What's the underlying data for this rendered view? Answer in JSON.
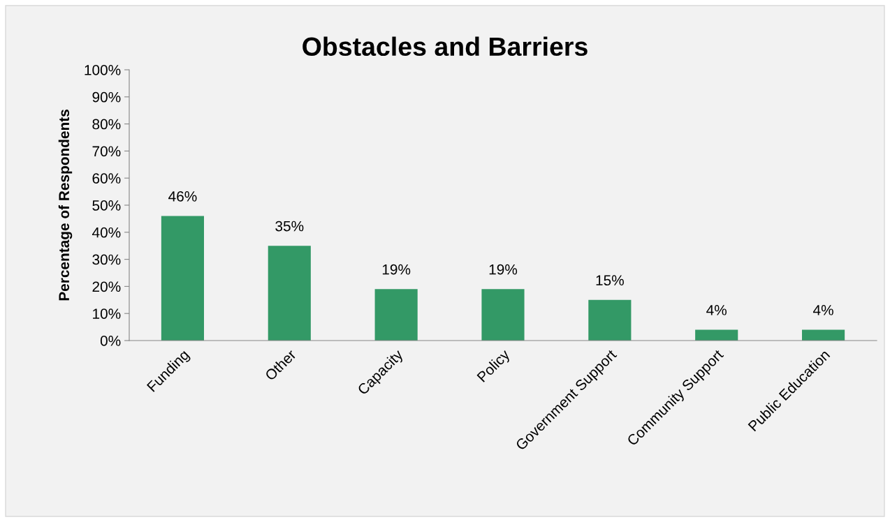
{
  "chart_data": {
    "type": "bar",
    "title": "Obstacles and Barriers",
    "ylabel": "Percentage of Respondents",
    "categories": [
      "Funding",
      "Other",
      "Capacity",
      "Policy",
      "Government Support",
      "Community Support",
      "Public Education"
    ],
    "values": [
      46,
      35,
      19,
      19,
      15,
      4,
      4
    ],
    "color": "#339966",
    "data_labels": true,
    "value_labels": [
      "46%",
      "35%",
      "19%",
      "19%",
      "15%",
      "4%",
      "4%"
    ],
    "ylim": [
      0,
      100
    ],
    "yticks": [
      {
        "value": 0,
        "label": "0%"
      },
      {
        "value": 10,
        "label": "10%"
      },
      {
        "value": 20,
        "label": "20%"
      },
      {
        "value": 30,
        "label": "30%"
      },
      {
        "value": 40,
        "label": "40%"
      },
      {
        "value": 50,
        "label": "50%"
      },
      {
        "value": 60,
        "label": "60%"
      },
      {
        "value": 70,
        "label": "70%"
      },
      {
        "value": 80,
        "label": "80%"
      },
      {
        "value": 90,
        "label": "90%"
      },
      {
        "value": 100,
        "label": "100%"
      }
    ],
    "grid": false
  }
}
